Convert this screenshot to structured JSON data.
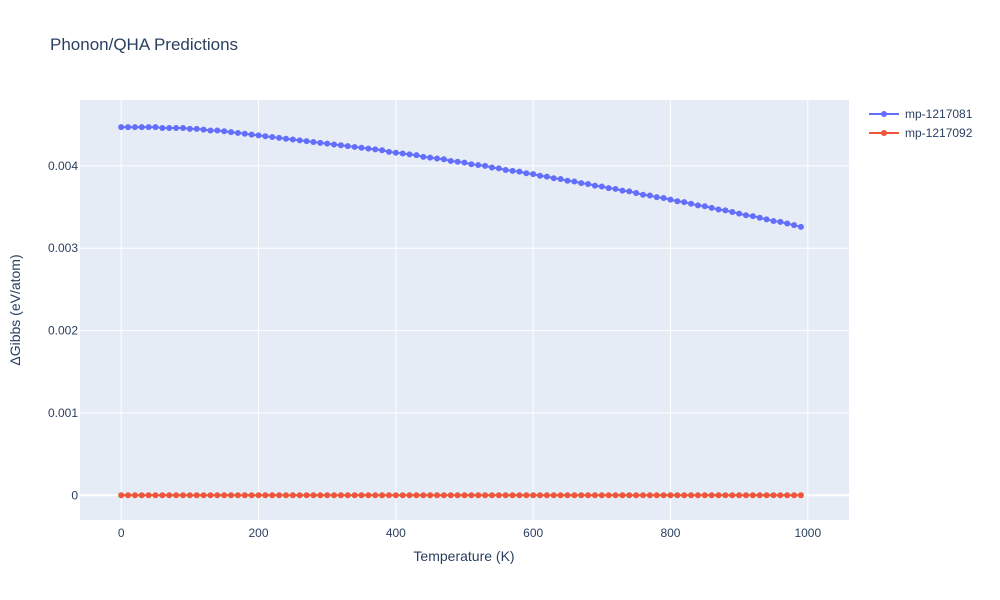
{
  "chart_data": {
    "type": "line",
    "title": "Phonon/QHA Predictions",
    "xlabel": "Temperature (K)",
    "ylabel": "ΔGibbs (eV/atom)",
    "xlim": [
      -60,
      1060
    ],
    "ylim": [
      -0.0003,
      0.0048
    ],
    "xticks": [
      0,
      200,
      400,
      600,
      800,
      1000
    ],
    "xtick_labels": [
      "0",
      "200",
      "400",
      "600",
      "800",
      "1000"
    ],
    "yticks": [
      0,
      0.001,
      0.002,
      0.003,
      0.004
    ],
    "ytick_labels": [
      "0",
      "0.001",
      "0.002",
      "0.003",
      "0.004"
    ],
    "grid": true,
    "legend_position": "top-right",
    "x": [
      0,
      10,
      20,
      30,
      40,
      50,
      60,
      70,
      80,
      90,
      100,
      110,
      120,
      130,
      140,
      150,
      160,
      170,
      180,
      190,
      200,
      210,
      220,
      230,
      240,
      250,
      260,
      270,
      280,
      290,
      300,
      310,
      320,
      330,
      340,
      350,
      360,
      370,
      380,
      390,
      400,
      410,
      420,
      430,
      440,
      450,
      460,
      470,
      480,
      490,
      500,
      510,
      520,
      530,
      540,
      550,
      560,
      570,
      580,
      590,
      600,
      610,
      620,
      630,
      640,
      650,
      660,
      670,
      680,
      690,
      700,
      710,
      720,
      730,
      740,
      750,
      760,
      770,
      780,
      790,
      800,
      810,
      820,
      830,
      840,
      850,
      860,
      870,
      880,
      890,
      900,
      910,
      920,
      930,
      940,
      950,
      960,
      970,
      980,
      990
    ],
    "series": [
      {
        "name": "mp-1217081",
        "color": "#636efa",
        "values": [
          0.00447,
          0.00447,
          0.00447,
          0.00447,
          0.00447,
          0.00447,
          0.00446,
          0.00446,
          0.00446,
          0.00446,
          0.00445,
          0.00445,
          0.00444,
          0.00443,
          0.00443,
          0.00442,
          0.00441,
          0.0044,
          0.00439,
          0.00438,
          0.00437,
          0.00436,
          0.00435,
          0.00434,
          0.00433,
          0.00432,
          0.00431,
          0.0043,
          0.00429,
          0.00428,
          0.00427,
          0.00426,
          0.00425,
          0.00424,
          0.00423,
          0.00422,
          0.00421,
          0.0042,
          0.00419,
          0.00417,
          0.00416,
          0.00415,
          0.00414,
          0.00413,
          0.00411,
          0.0041,
          0.00409,
          0.00408,
          0.00406,
          0.00405,
          0.00404,
          0.00402,
          0.00401,
          0.004,
          0.00398,
          0.00397,
          0.00395,
          0.00394,
          0.00393,
          0.00391,
          0.0039,
          0.00388,
          0.00387,
          0.00385,
          0.00384,
          0.00382,
          0.00381,
          0.00379,
          0.00378,
          0.00376,
          0.00375,
          0.00373,
          0.00372,
          0.0037,
          0.00369,
          0.00367,
          0.00365,
          0.00364,
          0.00362,
          0.00361,
          0.00359,
          0.00357,
          0.00356,
          0.00354,
          0.00352,
          0.00351,
          0.00349,
          0.00347,
          0.00346,
          0.00344,
          0.00342,
          0.0034,
          0.00339,
          0.00337,
          0.00335,
          0.00333,
          0.00332,
          0.0033,
          0.00328,
          0.00326
        ]
      },
      {
        "name": "mp-1217092",
        "color": "#ef553b",
        "values": [
          0,
          0,
          0,
          0,
          0,
          0,
          0,
          0,
          0,
          0,
          0,
          0,
          0,
          0,
          0,
          0,
          0,
          0,
          0,
          0,
          0,
          0,
          0,
          0,
          0,
          0,
          0,
          0,
          0,
          0,
          0,
          0,
          0,
          0,
          0,
          0,
          0,
          0,
          0,
          0,
          0,
          0,
          0,
          0,
          0,
          0,
          0,
          0,
          0,
          0,
          0,
          0,
          0,
          0,
          0,
          0,
          0,
          0,
          0,
          0,
          0,
          0,
          0,
          0,
          0,
          0,
          0,
          0,
          0,
          0,
          0,
          0,
          0,
          0,
          0,
          0,
          0,
          0,
          0,
          0,
          0,
          0,
          0,
          0,
          0,
          0,
          0,
          0,
          0,
          0,
          0,
          0,
          0,
          0,
          0,
          0,
          0,
          0,
          0,
          0
        ]
      }
    ]
  }
}
